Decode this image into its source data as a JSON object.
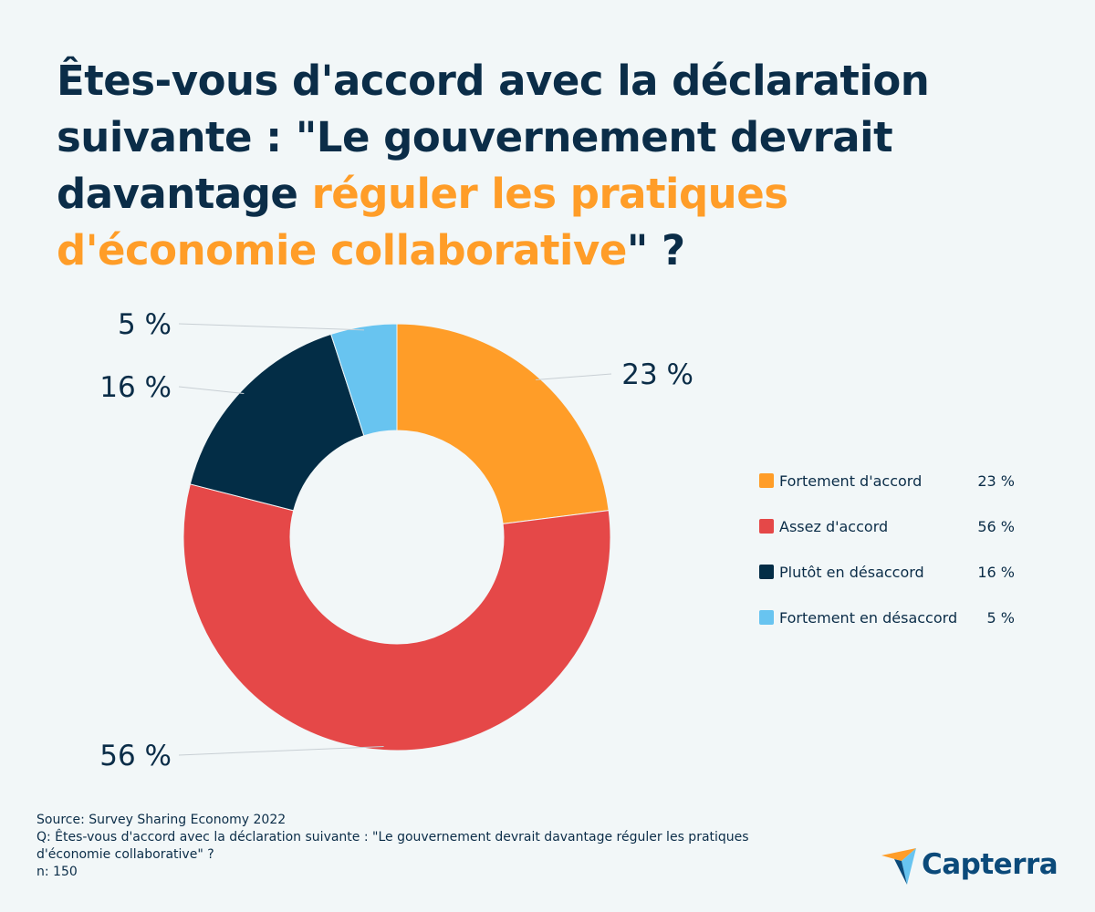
{
  "title": {
    "part1": "Êtes-vous d'accord avec la déclaration suivante : \"Le gouvernement devrait davantage ",
    "highlight": "réguler les pratiques d'économie collaborative",
    "part2": "\" ?"
  },
  "chart_data": {
    "type": "pie",
    "donut": true,
    "start": "top, clockwise",
    "categories": [
      "Fortement d'accord",
      "Assez d'accord",
      "Plutôt en désaccord",
      "Fortement en désaccord"
    ],
    "values": [
      23,
      56,
      16,
      5
    ],
    "unit": "%",
    "data_labels": [
      "23 %",
      "56 %",
      "16 %",
      "5 %"
    ],
    "colors": [
      "#ff9d28",
      "#e54848",
      "#032d46",
      "#68c4f0"
    ],
    "legend_position": "right"
  },
  "legend": [
    {
      "label": "Fortement d'accord",
      "value": "23 %"
    },
    {
      "label": "Assez d'accord",
      "value": "56 %"
    },
    {
      "label": "Plutôt en désaccord",
      "value": "16 %"
    },
    {
      "label": "Fortement en désaccord",
      "value": "5 %"
    }
  ],
  "footer": {
    "source": "Source: Survey Sharing Economy 2022",
    "question": "Q: Êtes-vous d'accord avec la déclaration suivante : \"Le gouvernement devrait davantage réguler les pratiques d'économie collaborative\" ?",
    "n": "n: 150"
  },
  "logo": {
    "text": "Capterra"
  }
}
